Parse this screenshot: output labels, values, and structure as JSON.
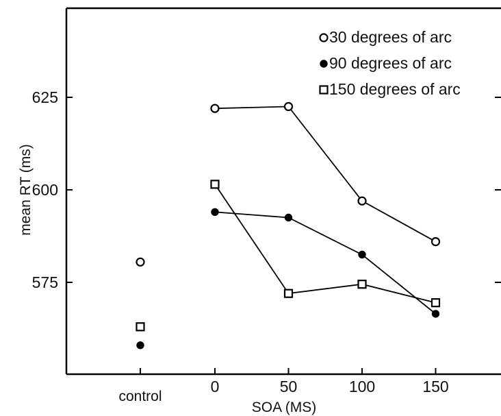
{
  "chart_data": {
    "type": "scatter",
    "title": "",
    "xlabel": "SOA (MS)",
    "ylabel": "mean RT (ms)",
    "x_tick_labels": [
      "control",
      "0",
      "50",
      "100",
      "150"
    ],
    "y_tick_labels": [
      "625",
      "600",
      "575"
    ],
    "ylim": [
      550,
      647
    ],
    "legend_position": "top-right",
    "grid": false,
    "series": [
      {
        "name": "30 degrees of arc",
        "marker": "open-circle",
        "control": 580.5,
        "x": [
          0,
          50,
          100,
          150
        ],
        "values": [
          622,
          622.5,
          597,
          586
        ]
      },
      {
        "name": "90 degrees of arc",
        "marker": "filled-circle",
        "control": 558,
        "x": [
          0,
          50,
          100,
          150
        ],
        "values": [
          594,
          592.5,
          582.5,
          566.5
        ]
      },
      {
        "name": "150 degrees of arc",
        "marker": "open-square",
        "control": 563,
        "x": [
          0,
          50,
          100,
          150
        ],
        "values": [
          601.5,
          572,
          574.5,
          569.5
        ]
      }
    ]
  }
}
